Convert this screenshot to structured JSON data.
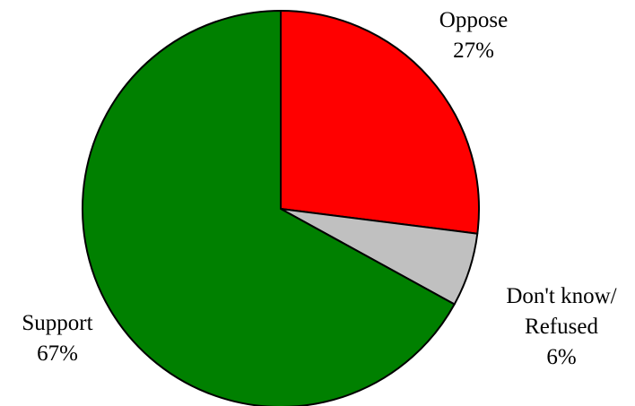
{
  "chart_data": {
    "type": "pie",
    "title": "",
    "start_angle_deg": 0,
    "direction": "clockwise",
    "slices": [
      {
        "label_lines": [
          "Oppose",
          "27%"
        ],
        "value": 27,
        "color": "#ff0000"
      },
      {
        "label_lines": [
          "Don't know/",
          "Refused",
          "6%"
        ],
        "value": 6,
        "color": "#c0c0c0"
      },
      {
        "label_lines": [
          "Support",
          "67%"
        ],
        "value": 67,
        "color": "#008000"
      }
    ],
    "border_color": "#000000"
  }
}
